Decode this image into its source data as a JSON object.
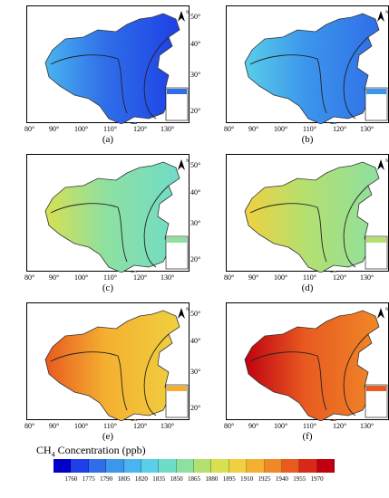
{
  "panels": [
    {
      "label": "(a)",
      "level": 0.15
    },
    {
      "label": "(b)",
      "level": 0.2
    },
    {
      "label": "(c)",
      "level": 0.45
    },
    {
      "label": "(d)",
      "level": 0.5
    },
    {
      "label": "(e)",
      "level": 0.75
    },
    {
      "label": "(f)",
      "level": 0.85
    }
  ],
  "axes": {
    "lon_ticks": [
      "80°",
      "90°",
      "100°",
      "110°",
      "120°",
      "130°"
    ],
    "lat_ticks": [
      "50°",
      "40°",
      "30°",
      "20°"
    ],
    "north_symbol": "N"
  },
  "colorbar": {
    "title_main": "CH",
    "title_sub": "4",
    "title_rest": " Concentration (ppb)",
    "ticks": [
      "1760",
      "1775",
      "1790",
      "1805",
      "1820",
      "1835",
      "1850",
      "1865",
      "1880",
      "1895",
      "1910",
      "1925",
      "1940",
      "1955",
      "1970"
    ],
    "colors": [
      "#0000c8",
      "#1e40e6",
      "#2f6ee8",
      "#3c96ec",
      "#4ab4f0",
      "#5acfe8",
      "#6fdcc8",
      "#8ee0a0",
      "#b4e070",
      "#d8e050",
      "#f0d040",
      "#f4b030",
      "#f08828",
      "#e85a20",
      "#d82818",
      "#c00010"
    ]
  }
}
